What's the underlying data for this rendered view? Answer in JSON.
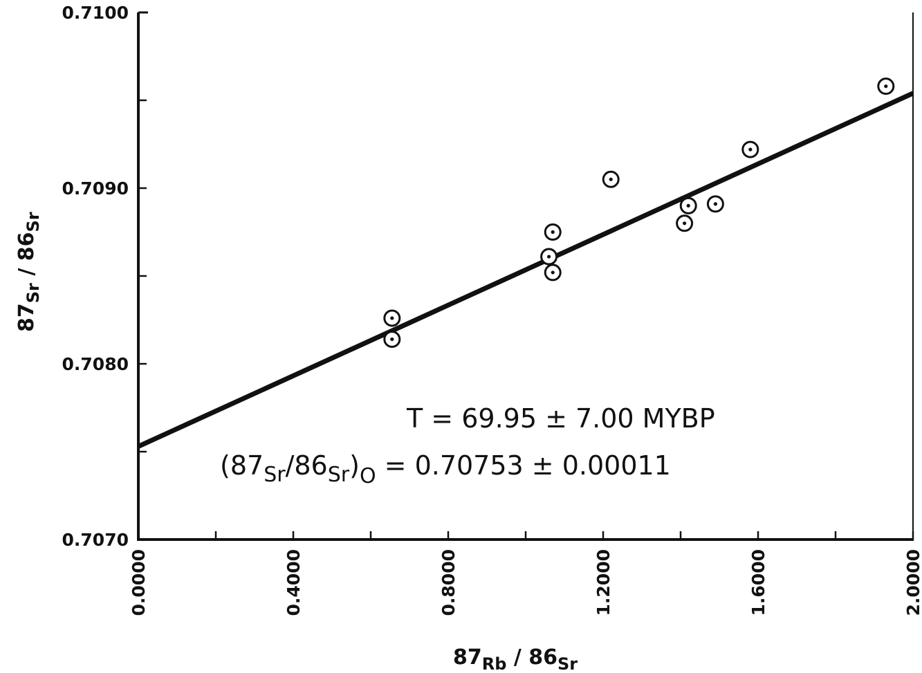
{
  "chart_data": {
    "type": "scatter",
    "title": "",
    "xlabel": {
      "a": "87",
      "b": "Rb",
      "c": " / 86",
      "d": "Sr"
    },
    "ylabel": {
      "a": "87",
      "b": "Sr",
      "c": " / 86",
      "d": "Sr"
    },
    "xlim": [
      0.0,
      2.0
    ],
    "ylim": [
      0.707,
      0.71
    ],
    "x_tick_labels": [
      "0.0000",
      "0.4000",
      "0.8000",
      "1.2000",
      "1.6000",
      "2.0000"
    ],
    "y_tick_labels": [
      "0.7070",
      "0.7080",
      "0.7090",
      "0.7100"
    ],
    "x_minor_step": 0.2,
    "y_minor_step": 0.0005,
    "grid": false,
    "series": [
      {
        "marker": "circle-dot",
        "x": [
          0.655,
          0.655,
          1.06,
          1.07,
          1.07,
          1.22,
          1.41,
          1.42,
          1.49,
          1.58,
          1.93
        ],
        "y": [
          0.70826,
          0.70814,
          0.70861,
          0.70875,
          0.70852,
          0.70905,
          0.7088,
          0.7089,
          0.70891,
          0.70922,
          0.70958
        ]
      }
    ],
    "fit_line": {
      "x": [
        0.0,
        2.0
      ],
      "y": [
        0.70753,
        0.70954
      ]
    },
    "annotations": {
      "line1": "T = 69.95 ± 7.00 MYBP",
      "line2": {
        "a": "(87",
        "b": "Sr",
        "c": "/86",
        "d": "Sr",
        "e": ")",
        "f": "O",
        "g": " = 0.70753 ± 0.00011"
      }
    },
    "colors": {
      "ink": "#111111",
      "background": "#ffffff"
    }
  }
}
